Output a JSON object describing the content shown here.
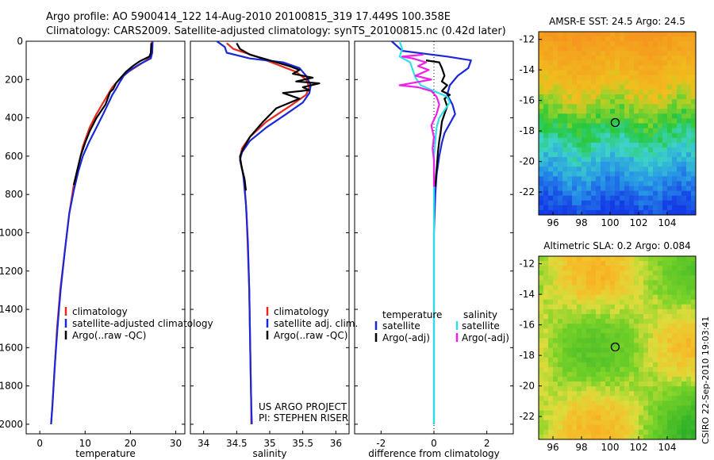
{
  "header": {
    "line1": "Argo profile: AO 5900414_122 14-Aug-2010 20100815_319 17.449S 100.358E",
    "line2": "Climatology: CARS2009. Satellite-adjusted climatology: synTS_20100815.nc (0.42d later)"
  },
  "side_stamp": "CSIRO 22-Sep-2010 19:03:41",
  "colors": {
    "climatology": "#e8281c",
    "satellite": "#1a28d8",
    "argo": "#000000",
    "salinity_satellite": "#30e0e8",
    "salinity_argo": "#f020e8"
  },
  "chart_data": [
    {
      "type": "line",
      "xlabel": "temperature",
      "ylabel": "",
      "xlim": [
        -3,
        32
      ],
      "ylim": [
        2050,
        0
      ],
      "x_ticks": [
        "0",
        "10",
        "20",
        "30"
      ],
      "y_ticks": [
        "0",
        "200",
        "400",
        "600",
        "800",
        "1000",
        "1200",
        "1400",
        "1600",
        "1800",
        "2000"
      ],
      "legend": [
        "climatology",
        "satellite-adjusted climatology",
        "Argo(..raw -QC)"
      ],
      "series": [
        {
          "name": "climatology",
          "color_key": "climatology",
          "points": [
            [
              24.7,
              0
            ],
            [
              24.6,
              50
            ],
            [
              24.5,
              80
            ],
            [
              23.5,
              100
            ],
            [
              21.5,
              130
            ],
            [
              19.5,
              160
            ],
            [
              17.5,
              200
            ],
            [
              16,
              240
            ],
            [
              15,
              280
            ],
            [
              14,
              320
            ],
            [
              12.5,
              380
            ],
            [
              11,
              450
            ],
            [
              9.5,
              550
            ],
            [
              8.5,
              650
            ],
            [
              7.5,
              750
            ],
            [
              6.5,
              900
            ],
            [
              5.5,
              1100
            ],
            [
              4.5,
              1300
            ],
            [
              3.8,
              1500
            ],
            [
              3.3,
              1700
            ],
            [
              2.8,
              1900
            ],
            [
              2.5,
              2000
            ]
          ]
        },
        {
          "name": "satellite-adjusted climatology",
          "color_key": "satellite",
          "points": [
            [
              24.9,
              0
            ],
            [
              24.8,
              60
            ],
            [
              24.5,
              90
            ],
            [
              22,
              120
            ],
            [
              20,
              150
            ],
            [
              18.5,
              180
            ],
            [
              17.5,
              220
            ],
            [
              16.8,
              250
            ],
            [
              16,
              280
            ],
            [
              15.2,
              320
            ],
            [
              14,
              380
            ],
            [
              12.5,
              450
            ],
            [
              11,
              520
            ],
            [
              9.5,
              600
            ],
            [
              8.5,
              680
            ],
            [
              7.5,
              780
            ],
            [
              6.5,
              900
            ],
            [
              5.5,
              1100
            ],
            [
              4.6,
              1300
            ],
            [
              3.9,
              1500
            ],
            [
              3.3,
              1700
            ],
            [
              2.8,
              1900
            ],
            [
              2.5,
              2000
            ]
          ]
        },
        {
          "name": "Argo(..raw -QC)",
          "color_key": "argo",
          "points": [
            [
              24.6,
              10
            ],
            [
              24.5,
              60
            ],
            [
              24.2,
              80
            ],
            [
              22,
              105
            ],
            [
              20.5,
              130
            ],
            [
              19,
              160
            ],
            [
              17.5,
              200
            ],
            [
              16.8,
              220
            ],
            [
              16.2,
              250
            ],
            [
              15.5,
              265
            ],
            [
              15.2,
              285
            ],
            [
              14.5,
              330
            ],
            [
              12.5,
              400
            ],
            [
              11,
              470
            ],
            [
              10,
              530
            ],
            [
              9,
              600
            ],
            [
              8.2,
              680
            ],
            [
              7.5,
              750
            ]
          ]
        }
      ]
    },
    {
      "type": "line",
      "xlabel": "salinity",
      "ylabel": "",
      "xlim": [
        33.8,
        36.2
      ],
      "ylim": [
        2050,
        0
      ],
      "x_ticks": [
        "34",
        "34.5",
        "35",
        "35.5",
        "36"
      ],
      "legend": [
        "climatology",
        "satellite adj. clim.",
        "Argo(..raw -QC)"
      ],
      "annotation": [
        "US ARGO PROJECT",
        "PI: STEPHEN RISER"
      ],
      "series": [
        {
          "name": "climatology",
          "color_key": "climatology",
          "points": [
            [
              34.35,
              10
            ],
            [
              34.45,
              40
            ],
            [
              34.8,
              80
            ],
            [
              35.1,
              120
            ],
            [
              35.4,
              160
            ],
            [
              35.55,
              200
            ],
            [
              35.6,
              240
            ],
            [
              35.55,
              280
            ],
            [
              35.3,
              340
            ],
            [
              34.95,
              420
            ],
            [
              34.7,
              500
            ],
            [
              34.58,
              560
            ],
            [
              34.55,
              610
            ],
            [
              34.58,
              660
            ],
            [
              34.62,
              750
            ],
            [
              34.65,
              900
            ],
            [
              34.67,
              1100
            ],
            [
              34.69,
              1300
            ],
            [
              34.7,
              1500
            ],
            [
              34.71,
              1700
            ],
            [
              34.72,
              1900
            ],
            [
              34.72,
              2000
            ]
          ]
        },
        {
          "name": "satellite adj. clim.",
          "color_key": "satellite",
          "points": [
            [
              34.2,
              0
            ],
            [
              34.32,
              30
            ],
            [
              34.35,
              60
            ],
            [
              34.7,
              90
            ],
            [
              35.2,
              110
            ],
            [
              35.45,
              140
            ],
            [
              35.55,
              180
            ],
            [
              35.62,
              230
            ],
            [
              35.6,
              270
            ],
            [
              35.5,
              320
            ],
            [
              35.25,
              380
            ],
            [
              34.95,
              450
            ],
            [
              34.7,
              520
            ],
            [
              34.58,
              580
            ],
            [
              34.55,
              620
            ],
            [
              34.6,
              700
            ],
            [
              34.64,
              850
            ],
            [
              34.67,
              1050
            ],
            [
              34.69,
              1300
            ],
            [
              34.7,
              1500
            ],
            [
              34.71,
              1700
            ],
            [
              34.72,
              1900
            ],
            [
              34.73,
              2000
            ]
          ]
        },
        {
          "name": "Argo(..raw -QC)",
          "color_key": "argo",
          "points": [
            [
              34.5,
              10
            ],
            [
              34.55,
              40
            ],
            [
              34.7,
              70
            ],
            [
              35.0,
              100
            ],
            [
              35.3,
              130
            ],
            [
              35.45,
              150
            ],
            [
              35.35,
              170
            ],
            [
              35.65,
              190
            ],
            [
              35.4,
              210
            ],
            [
              35.75,
              220
            ],
            [
              35.5,
              240
            ],
            [
              35.6,
              255
            ],
            [
              35.2,
              270
            ],
            [
              35.45,
              300
            ],
            [
              35.1,
              350
            ],
            [
              34.9,
              420
            ],
            [
              34.7,
              500
            ],
            [
              34.6,
              560
            ],
            [
              34.55,
              600
            ],
            [
              34.57,
              650
            ],
            [
              34.62,
              720
            ],
            [
              34.64,
              780
            ]
          ]
        }
      ]
    },
    {
      "type": "line",
      "xlabel": "difference from climatology",
      "ylabel": "",
      "xlim": [
        -3,
        3
      ],
      "ylim": [
        2050,
        0
      ],
      "x_ticks": [
        "-2",
        "0",
        "2"
      ],
      "legend_temperature": {
        "heading": "temperature",
        "items": [
          "satellite",
          "Argo(-adj)"
        ]
      },
      "legend_salinity": {
        "heading": "salinity",
        "items": [
          "satellite",
          "Argo(-adj)"
        ]
      },
      "series": [
        {
          "name": "temperature satellite",
          "color_key": "satellite",
          "points": [
            [
              -1.6,
              0
            ],
            [
              -1.2,
              50
            ],
            [
              0.5,
              80
            ],
            [
              1.4,
              100
            ],
            [
              1.3,
              140
            ],
            [
              0.9,
              180
            ],
            [
              0.6,
              230
            ],
            [
              0.5,
              280
            ],
            [
              0.7,
              330
            ],
            [
              0.8,
              380
            ],
            [
              0.6,
              430
            ],
            [
              0.4,
              480
            ],
            [
              0.3,
              530
            ],
            [
              0.2,
              600
            ],
            [
              0.1,
              700
            ],
            [
              0.05,
              800
            ],
            [
              0,
              1000
            ],
            [
              0,
              1500
            ],
            [
              0,
              2000
            ]
          ]
        },
        {
          "name": "temperature Argo(-adj)",
          "color_key": "argo",
          "points": [
            [
              -0.3,
              100
            ],
            [
              0.2,
              110
            ],
            [
              0.3,
              140
            ],
            [
              0.4,
              180
            ],
            [
              0.3,
              210
            ],
            [
              0.5,
              230
            ],
            [
              0.3,
              260
            ],
            [
              0.6,
              280
            ],
            [
              0.4,
              300
            ],
            [
              0.5,
              340
            ],
            [
              0.4,
              380
            ],
            [
              0.3,
              420
            ],
            [
              0.25,
              480
            ],
            [
              0.2,
              520
            ],
            [
              0.15,
              580
            ],
            [
              0.12,
              640
            ],
            [
              0.08,
              700
            ],
            [
              0.05,
              760
            ]
          ]
        },
        {
          "name": "salinity satellite",
          "color_key": "salinity_satellite",
          "points": [
            [
              -1.3,
              0
            ],
            [
              -1.2,
              40
            ],
            [
              -1.3,
              80
            ],
            [
              -0.9,
              110
            ],
            [
              -0.8,
              150
            ],
            [
              -0.7,
              190
            ],
            [
              -0.5,
              230
            ],
            [
              0,
              260
            ],
            [
              0.5,
              290
            ],
            [
              0.6,
              320
            ],
            [
              0.4,
              360
            ],
            [
              0.2,
              400
            ],
            [
              0.1,
              450
            ],
            [
              0.05,
              520
            ],
            [
              0,
              600
            ],
            [
              0,
              700
            ],
            [
              0,
              1000
            ],
            [
              0,
              2000
            ]
          ]
        },
        {
          "name": "salinity Argo(-adj)",
          "color_key": "salinity_argo",
          "points": [
            [
              -0.4,
              70
            ],
            [
              -1.2,
              80
            ],
            [
              -0.8,
              90
            ],
            [
              -0.3,
              110
            ],
            [
              -0.6,
              130
            ],
            [
              -0.2,
              150
            ],
            [
              -0.7,
              180
            ],
            [
              -0.1,
              200
            ],
            [
              -1.3,
              230
            ],
            [
              -0.6,
              240
            ],
            [
              -0.1,
              260
            ],
            [
              0.1,
              290
            ],
            [
              0.2,
              330
            ],
            [
              0.1,
              380
            ],
            [
              -0.1,
              440
            ],
            [
              0,
              500
            ],
            [
              -0.05,
              560
            ],
            [
              0,
              620
            ],
            [
              0,
              700
            ],
            [
              0,
              760
            ]
          ]
        }
      ]
    },
    {
      "type": "heatmap",
      "title": "AMSR-E SST: 24.5 Argo: 24.5",
      "xlim": [
        95,
        106
      ],
      "ylim": [
        -23.5,
        -11.5
      ],
      "x_ticks": [
        "96",
        "98",
        "100",
        "102",
        "104"
      ],
      "y_ticks": [
        "-12",
        "-14",
        "-16",
        "-18",
        "-20",
        "-22"
      ],
      "marker": {
        "lon": 100.358,
        "lat": -17.449
      }
    },
    {
      "type": "heatmap",
      "title": "Altimetric SLA: 0.2 Argo: 0.084",
      "xlim": [
        95,
        106
      ],
      "ylim": [
        -23.5,
        -11.5
      ],
      "x_ticks": [
        "96",
        "98",
        "100",
        "102",
        "104"
      ],
      "y_ticks": [
        "-12",
        "-14",
        "-16",
        "-18",
        "-20",
        "-22"
      ],
      "marker": {
        "lon": 100.358,
        "lat": -17.449
      }
    }
  ]
}
